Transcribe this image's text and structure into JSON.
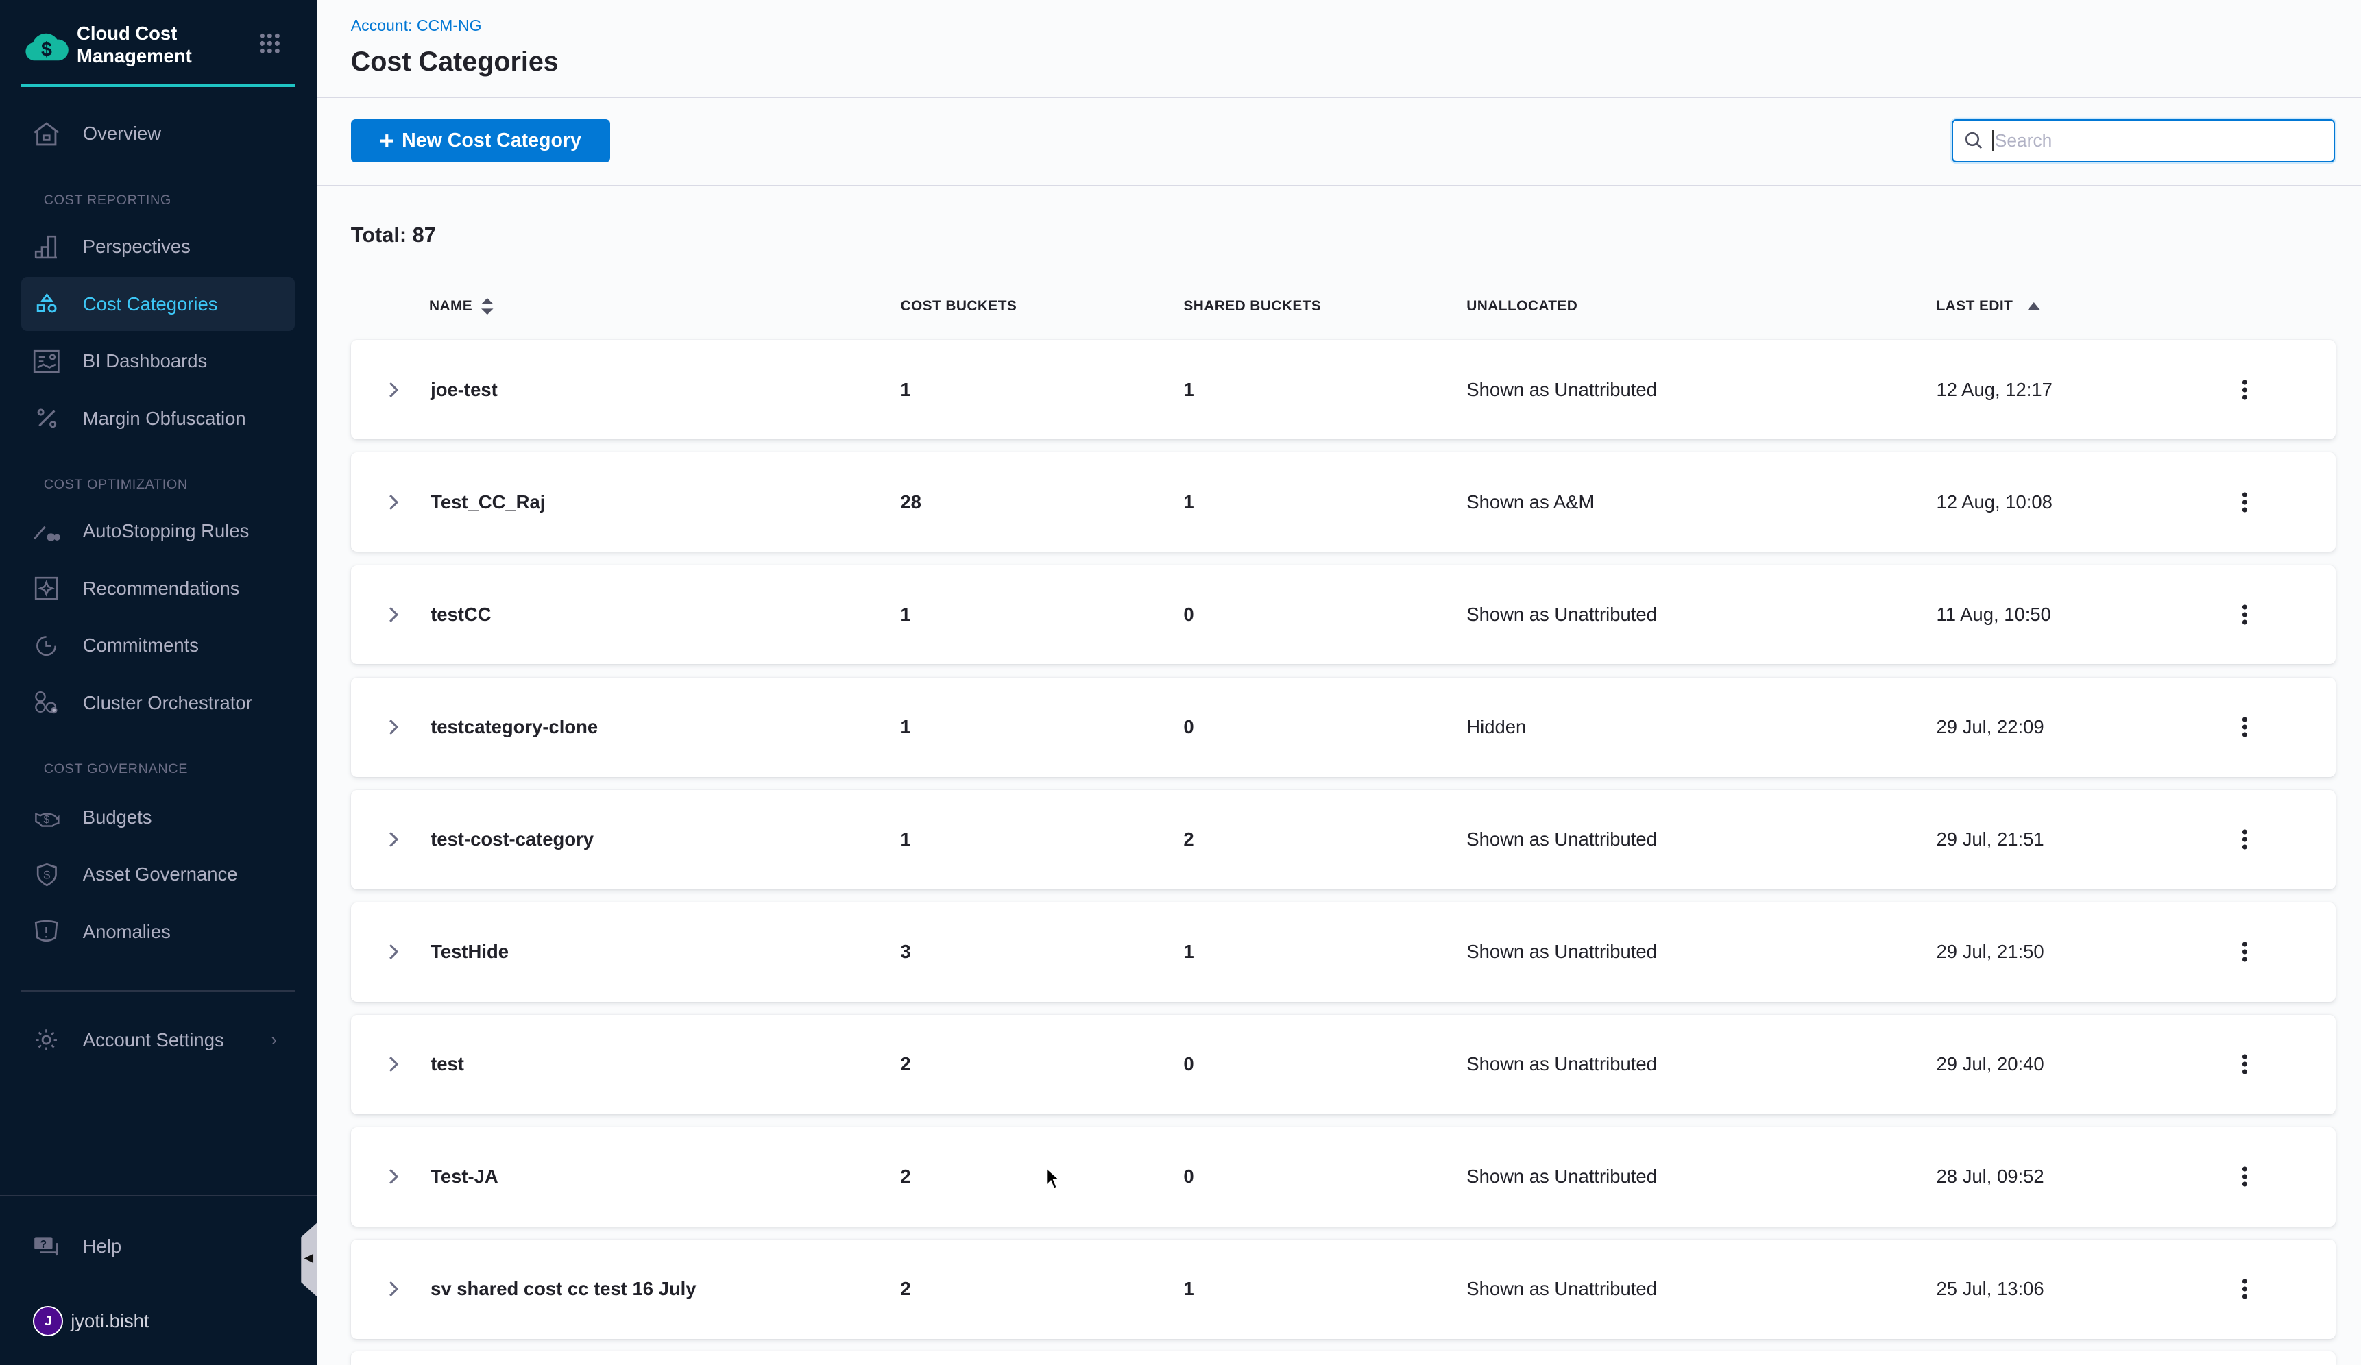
{
  "sidebar": {
    "brand": "Cloud Cost Management",
    "overview": "Overview",
    "sections": [
      "COST REPORTING",
      "COST OPTIMIZATION",
      "COST GOVERNANCE"
    ],
    "items": [
      {
        "label": "Perspectives",
        "icon": "bar-chart-icon"
      },
      {
        "label": "Cost Categories",
        "icon": "shapes-icon",
        "active": true
      },
      {
        "label": "BI Dashboards",
        "icon": "dashboard-icon"
      },
      {
        "label": "Margin Obfuscation",
        "icon": "percent-icon"
      },
      {
        "label": "AutoStopping Rules",
        "icon": "autostopping-icon"
      },
      {
        "label": "Recommendations",
        "icon": "recommendations-icon"
      },
      {
        "label": "Commitments",
        "icon": "commitments-icon"
      },
      {
        "label": "Cluster Orchestrator",
        "icon": "cluster-icon"
      },
      {
        "label": "Budgets",
        "icon": "budget-icon"
      },
      {
        "label": "Asset Governance",
        "icon": "shield-icon"
      },
      {
        "label": "Anomalies",
        "icon": "alert-icon"
      }
    ],
    "account_settings": "Account Settings",
    "help": "Help",
    "user": {
      "initial": "J",
      "name": "jyoti.bisht"
    },
    "accent": "#3dc7f6"
  },
  "header": {
    "breadcrumb": "Account: CCM-NG",
    "title": "Cost Categories"
  },
  "toolbar": {
    "new_button": "New Cost Category",
    "search_placeholder": "Search"
  },
  "total": "Total: 87",
  "table": {
    "columns": [
      "NAME",
      "COST BUCKETS",
      "SHARED BUCKETS",
      "UNALLOCATED",
      "LAST EDIT"
    ],
    "rows": [
      [
        "joe-test",
        "1",
        "1",
        "Shown as Unattributed",
        "12 Aug, 12:17"
      ],
      [
        "Test_CC_Raj",
        "28",
        "1",
        "Shown as A&M",
        "12 Aug, 10:08"
      ],
      [
        "testCC",
        "1",
        "0",
        "Shown as Unattributed",
        "11 Aug, 10:50"
      ],
      [
        "testcategory-clone",
        "1",
        "0",
        "Hidden",
        "29 Jul, 22:09"
      ],
      [
        "test-cost-category",
        "1",
        "2",
        "Shown as Unattributed",
        "29 Jul, 21:51"
      ],
      [
        "TestHide",
        "3",
        "1",
        "Shown as Unattributed",
        "29 Jul, 21:50"
      ],
      [
        "test",
        "2",
        "0",
        "Shown as Unattributed",
        "29 Jul, 20:40"
      ],
      [
        "Test-JA",
        "2",
        "0",
        "Shown as Unattributed",
        "28 Jul, 09:52"
      ],
      [
        "sv shared cost cc test 16 July",
        "2",
        "1",
        "Shown as Unattributed",
        "25 Jul, 13:06"
      ]
    ]
  }
}
